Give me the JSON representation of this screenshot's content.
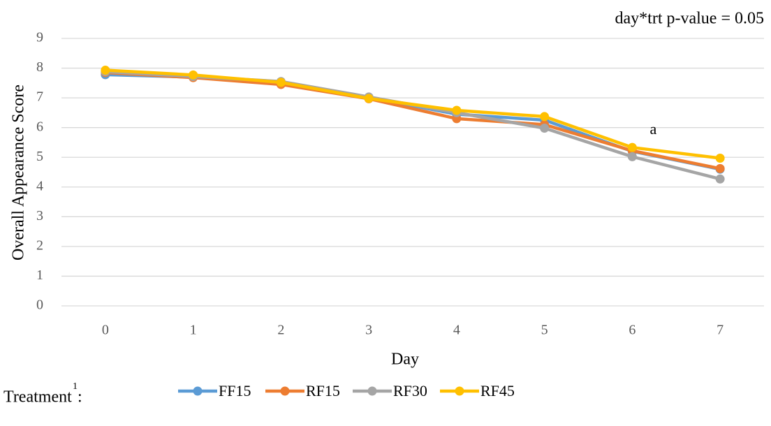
{
  "chart_data": {
    "type": "line",
    "note": "day*trt p-value = 0.05",
    "x_label": "Day",
    "y_label": "Overall Appearance Score",
    "x": [
      0,
      1,
      2,
      3,
      4,
      5,
      6,
      7
    ],
    "xlim": [
      -0.5,
      7.5
    ],
    "xticks": [
      0,
      1,
      2,
      3,
      4,
      5,
      6,
      7
    ],
    "ylim": [
      0,
      9
    ],
    "yticks": [
      0,
      1,
      2,
      3,
      4,
      5,
      6,
      7,
      8,
      9
    ],
    "grid": true,
    "series": [
      {
        "name": "FF15",
        "color": "#5b9bd5",
        "values": [
          7.78,
          7.7,
          7.52,
          7.02,
          6.45,
          6.25,
          5.2,
          4.6
        ]
      },
      {
        "name": "RF15",
        "color": "#ed7d31",
        "values": [
          7.85,
          7.68,
          7.45,
          6.97,
          6.3,
          6.1,
          5.22,
          4.62
        ]
      },
      {
        "name": "RF30",
        "color": "#a5a5a5",
        "values": [
          7.88,
          7.72,
          7.55,
          7.03,
          6.5,
          5.98,
          5.02,
          4.27
        ]
      },
      {
        "name": "RF45",
        "color": "#ffc000",
        "values": [
          7.93,
          7.77,
          7.52,
          6.98,
          6.58,
          6.37,
          5.33,
          4.97
        ]
      }
    ],
    "annotations": [
      {
        "text": "a",
        "x": 6
      }
    ],
    "legend_title": "Treatment",
    "legend_title_superscript": "1",
    "legend_title_suffix": ":"
  }
}
